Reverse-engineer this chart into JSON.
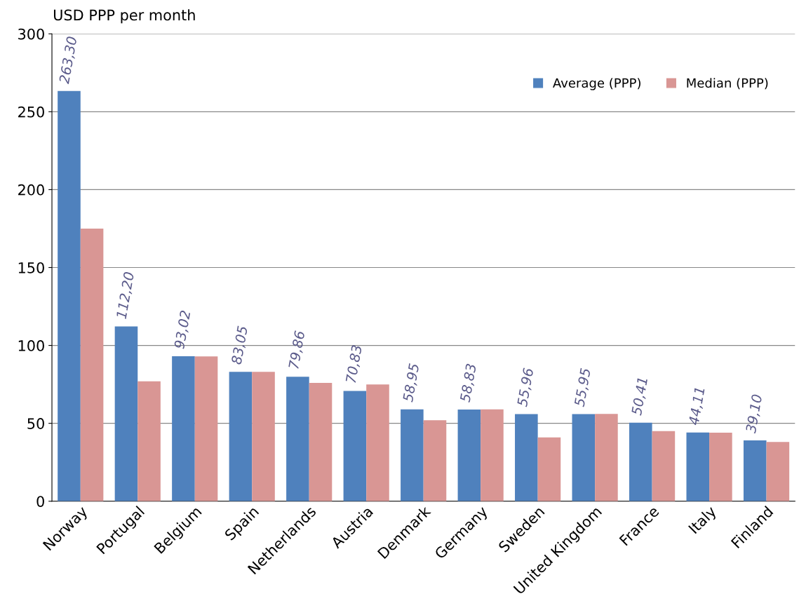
{
  "chart_data": {
    "type": "bar",
    "ylabel": "USD PPP per month",
    "categories": [
      "Norway",
      "Portugal",
      "Belgium",
      "Spain",
      "Netherlands",
      "Austria",
      "Denmark",
      "Germany",
      "Sweden",
      "United Kingdom",
      "France",
      "Italy",
      "Finland"
    ],
    "series": [
      {
        "name": "Average (PPP)",
        "color": "#4f81bd",
        "values": [
          263.3,
          112.2,
          93.02,
          83.05,
          79.86,
          70.83,
          58.95,
          58.83,
          55.96,
          55.95,
          50.41,
          44.11,
          39.1
        ],
        "value_labels": [
          "263,30",
          "112,20",
          "93,02",
          "83,05",
          "79,86",
          "70,83",
          "58,95",
          "58,83",
          "55,96",
          "55,95",
          "50,41",
          "44,11",
          "39,10"
        ]
      },
      {
        "name": "Median (PPP)",
        "color": "#d99694",
        "values": [
          175,
          77,
          93,
          83,
          76,
          75,
          52,
          59,
          41,
          56,
          45,
          44,
          38
        ]
      }
    ],
    "ylim": [
      0,
      300
    ],
    "yticks": [
      0,
      50,
      100,
      150,
      200,
      250,
      300
    ],
    "grid": "y",
    "legend": "top right"
  }
}
